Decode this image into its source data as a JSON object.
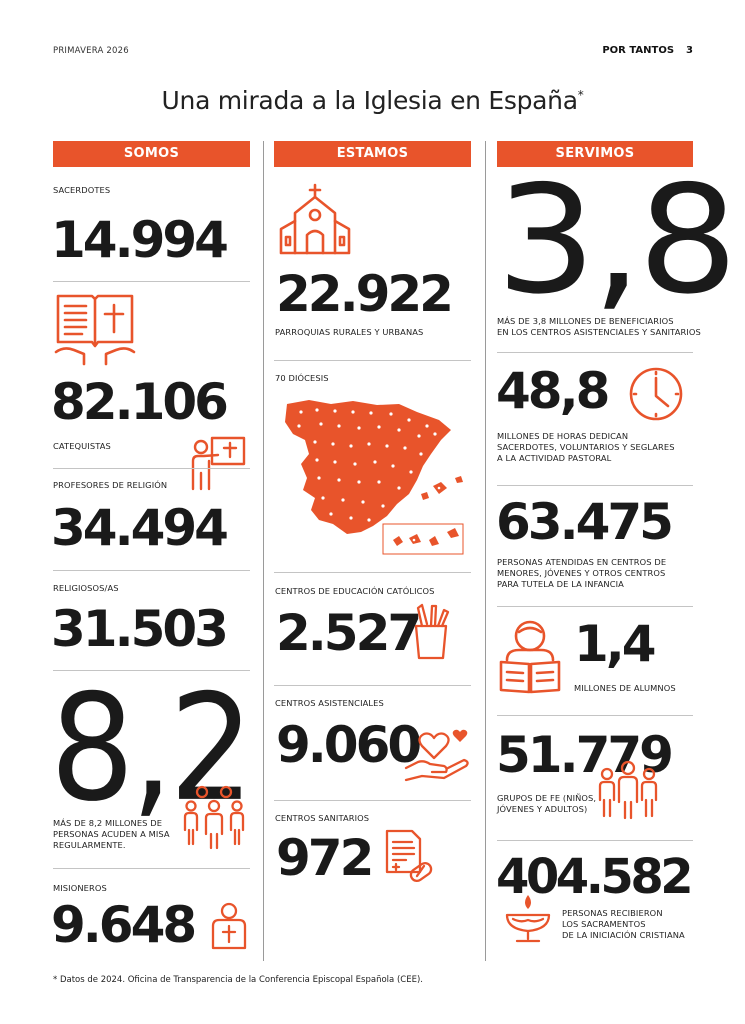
{
  "header": {
    "season": "PRIMAVERA 2026",
    "brand": "POR TANTOS",
    "page": "3"
  },
  "title": {
    "text": "Una mirada a la Iglesia en España",
    "mark": "*"
  },
  "columns": {
    "somos": {
      "heading": "SOMOS",
      "sacerdotes": {
        "label": "SACERDOTES",
        "value": "14.994"
      },
      "catequistas": {
        "value": "82.106",
        "label": "CATEQUISTAS"
      },
      "profesores": {
        "label": "PROFESORES DE RELIGIÓN",
        "value": "34.494"
      },
      "religiosos": {
        "label": "RELIGIOSOS/AS",
        "value": "31.503"
      },
      "misa": {
        "value": "8,2",
        "line1": "MÁS DE 8,2 MILLONES DE",
        "line2": "PERSONAS ACUDEN A MISA",
        "line3": "REGULARMENTE."
      },
      "misioneros": {
        "label": "MISIONEROS",
        "value": "9.648"
      }
    },
    "estamos": {
      "heading": "ESTAMOS",
      "parroquias": {
        "value": "22.922",
        "label": "PARROQUIAS RURALES Y URBANAS"
      },
      "diocesis": {
        "label": "70 DIÓCESIS"
      },
      "educacion": {
        "label": "CENTROS DE EDUCACIÓN CATÓLICOS",
        "value": "2.527"
      },
      "asistenciales": {
        "label": "CENTROS ASISTENCIALES",
        "value": "9.060"
      },
      "sanitarios": {
        "label": "CENTROS SANITARIOS",
        "value": "972"
      }
    },
    "servimos": {
      "heading": "SERVIMOS",
      "beneficiarios": {
        "value": "3,8",
        "line1": "MÁS DE 3,8 MILLONES DE BENEFICIARIOS",
        "line2": "EN LOS CENTROS ASISTENCIALES Y SANITARIOS"
      },
      "horas": {
        "value": "48,8",
        "line1": "MILLONES DE HORAS DEDICAN",
        "line2": "SACERDOTES, VOLUNTARIOS Y SEGLARES",
        "line3": "A LA ACTIVIDAD PASTORAL"
      },
      "atendidas": {
        "value": "63.475",
        "line1": "PERSONAS ATENDIDAS EN CENTROS DE",
        "line2": "MENORES, JÓVENES Y OTROS CENTROS",
        "line3": "PARA TUTELA DE LA INFANCIA"
      },
      "alumnos": {
        "value": "1,4",
        "label": "MILLONES DE ALUMNOS"
      },
      "grupos": {
        "value": "51.779",
        "line1": "GRUPOS DE FE (NIÑOS,",
        "line2": "JÓVENES Y ADULTOS)"
      },
      "sacramentos": {
        "value": "404.582",
        "line1": "PERSONAS RECIBIERON",
        "line2": "LOS SACRAMENTOS",
        "line3": "DE LA INICIACIÓN CRISTIANA"
      }
    }
  },
  "footnote": "* Datos de 2024. Oficina de Transparencia de la Conferencia Episcopal Española (CEE).",
  "colors": {
    "accent": "#e8542b",
    "text": "#1a1a1a"
  },
  "icons": [
    "bible-icon",
    "teacher-icon",
    "family-icon",
    "missionary-icon",
    "church-icon",
    "spain-map-icon",
    "pencil-cup-icon",
    "heart-hand-icon",
    "medical-icon",
    "clock-icon",
    "reading-icon",
    "group-icon",
    "baptism-font-icon"
  ]
}
